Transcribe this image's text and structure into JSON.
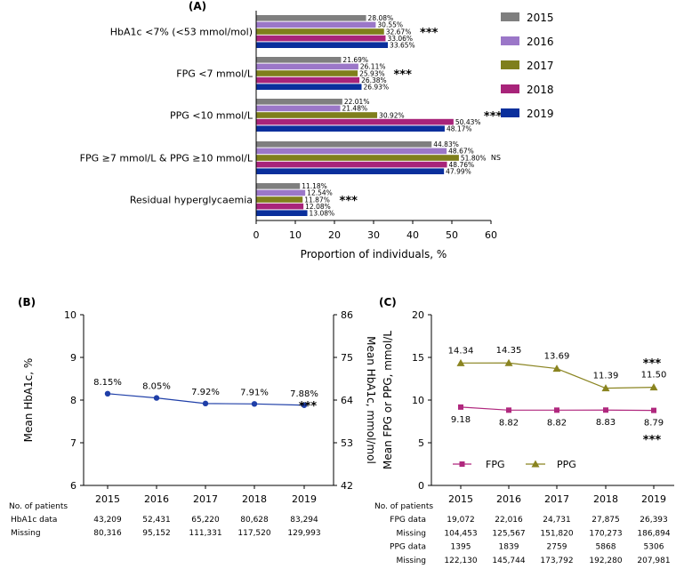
{
  "chart_data": [
    {
      "panel": "(A)",
      "type": "bar",
      "orientation": "horizontal",
      "categories": [
        "HbA1c <7% (<53 mmol/mol)",
        "FPG <7 mmol/L",
        "PPG <10 mmol/L",
        "FPG ≥7 mmol/L & PPG ≥10 mmol/L",
        "Residual hyperglycaemia"
      ],
      "series": [
        {
          "name": "2015",
          "color": "#7f7f7f",
          "values": [
            28.08,
            21.69,
            22.01,
            44.83,
            11.18
          ],
          "labels": [
            "28.08%",
            "21.69%",
            "22.01%",
            "44.83%",
            "11.18%"
          ]
        },
        {
          "name": "2016",
          "color": "#9b77c8",
          "values": [
            30.55,
            26.11,
            21.48,
            48.67,
            12.54
          ],
          "labels": [
            "30.55%",
            "26.11%",
            "21.48%",
            "48.67%",
            "12.54%"
          ]
        },
        {
          "name": "2017",
          "color": "#7f7f1c",
          "values": [
            32.67,
            25.93,
            30.92,
            51.8,
            11.87
          ],
          "labels": [
            "32.67%",
            "25.93%",
            "30.92%",
            "51.80%",
            "11.87%"
          ]
        },
        {
          "name": "2018",
          "color": "#a8247a",
          "values": [
            33.06,
            26.38,
            50.43,
            48.76,
            12.08
          ],
          "labels": [
            "33.06%",
            "26.38%",
            "50.43%",
            "48.76%",
            "12.08%"
          ]
        },
        {
          "name": "2019",
          "color": "#0a2f9c",
          "values": [
            33.65,
            26.93,
            48.17,
            47.99,
            13.08
          ],
          "labels": [
            "33.65%",
            "26.93%",
            "48.17%",
            "47.99%",
            "13.08%"
          ]
        }
      ],
      "significance": [
        "***",
        "***",
        "***",
        "NS",
        "***"
      ],
      "xlabel": "Proportion of individuals, %",
      "xlim": [
        0,
        60
      ],
      "xticks": [
        "0",
        "10",
        "20",
        "30",
        "40",
        "50",
        "60"
      ]
    },
    {
      "panel": "(B)",
      "type": "line",
      "x": [
        "2015",
        "2016",
        "2017",
        "2018",
        "2019"
      ],
      "series": [
        {
          "name": "HbA1c",
          "color": "#1f3fa8",
          "values": [
            8.15,
            8.05,
            7.92,
            7.91,
            7.88
          ],
          "labels": [
            "8.15%",
            "8.05%",
            "7.92%",
            "7.91%",
            "7.88%"
          ]
        }
      ],
      "ylabel": "Mean HbA1c, %",
      "ylim": [
        6,
        10
      ],
      "yticks": [
        "6",
        "7",
        "8",
        "9",
        "10"
      ],
      "y2label": "Mean HbA1c, mmol/mol",
      "y2ticks": [
        "42",
        "53",
        "64",
        "75",
        "86"
      ],
      "significance": "***",
      "table": {
        "header": "No. of patients",
        "rows": [
          {
            "label": "HbA1c data",
            "values": [
              "43,209",
              "52,431",
              "65,220",
              "80,628",
              "83,294"
            ]
          },
          {
            "label": "Missing",
            "values": [
              "80,316",
              "95,152",
              "111,331",
              "117,520",
              "129,993"
            ]
          }
        ]
      }
    },
    {
      "panel": "(C)",
      "type": "line",
      "x": [
        "2015",
        "2016",
        "2017",
        "2018",
        "2019"
      ],
      "series": [
        {
          "name": "FPG",
          "color": "#b0287e",
          "values": [
            9.18,
            8.82,
            8.82,
            8.83,
            8.79
          ],
          "labels": [
            "9.18",
            "8.82",
            "8.82",
            "8.83",
            "8.79"
          ]
        },
        {
          "name": "PPG",
          "color": "#8a8420",
          "values": [
            14.34,
            14.35,
            13.69,
            11.39,
            11.5
          ],
          "labels": [
            "14.34",
            "14.35",
            "13.69",
            "11.39",
            "11.50"
          ]
        }
      ],
      "ylabel": "Mean FPG or PPG, mmol/L",
      "ylim": [
        0,
        20
      ],
      "yticks": [
        "0",
        "5",
        "10",
        "15",
        "20"
      ],
      "significance": [
        "***",
        "***"
      ],
      "legend_position": "bottom-left",
      "table": {
        "header": "No. of patients",
        "rows": [
          {
            "label": "FPG data",
            "values": [
              "19,072",
              "22,016",
              "24,731",
              "27,875",
              "26,393"
            ]
          },
          {
            "label": "Missing",
            "values": [
              "104,453",
              "125,567",
              "151,820",
              "170,273",
              "186,894"
            ]
          },
          {
            "label": "PPG data",
            "values": [
              "1395",
              "1839",
              "2759",
              "5868",
              "5306"
            ]
          },
          {
            "label": "Missing",
            "values": [
              "122,130",
              "145,744",
              "173,792",
              "192,280",
              "207,981"
            ]
          }
        ]
      }
    }
  ]
}
